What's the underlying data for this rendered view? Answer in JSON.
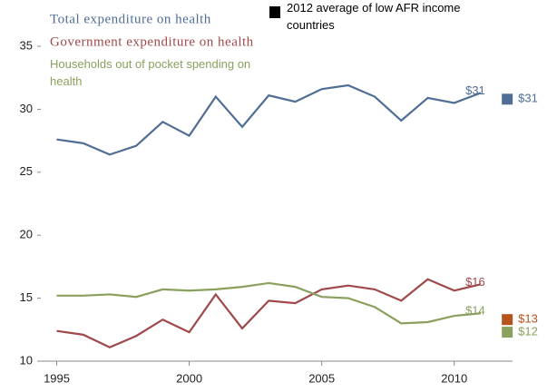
{
  "chart_data": {
    "type": "line",
    "x": [
      1995,
      1996,
      1997,
      1998,
      1999,
      2000,
      2001,
      2002,
      2003,
      2004,
      2005,
      2006,
      2007,
      2008,
      2009,
      2010,
      2011
    ],
    "xlim": [
      1994.4,
      2012.2
    ],
    "xticks": [
      1995,
      2000,
      2005,
      2010
    ],
    "ylim": [
      10,
      35
    ],
    "yticks": [
      10,
      15,
      20,
      25,
      30,
      35
    ],
    "series": [
      {
        "name": "Total expenditure on health",
        "color": "#4f6d95",
        "values": [
          27.6,
          27.3,
          26.4,
          27.1,
          29.0,
          27.9,
          31.0,
          28.6,
          31.1,
          30.6,
          31.6,
          31.9,
          31.0,
          29.1,
          30.9,
          30.5,
          31.3
        ],
        "end_label": {
          "value": 31.3,
          "label": "$31"
        }
      },
      {
        "name": "Government expenditure on health",
        "color": "#a0484a",
        "values": [
          12.4,
          12.1,
          11.1,
          12.0,
          13.3,
          12.3,
          15.3,
          12.6,
          14.8,
          14.6,
          15.7,
          16.0,
          15.7,
          14.8,
          16.5,
          15.6,
          16.1
        ],
        "end_label": {
          "value": 16.1,
          "label": "$16"
        }
      },
      {
        "name": "Households out of pocket spending on health",
        "color": "#8aa05e",
        "values": [
          15.2,
          15.2,
          15.3,
          15.1,
          15.7,
          15.6,
          15.7,
          15.9,
          16.2,
          15.9,
          15.1,
          15.0,
          14.3,
          13.0,
          13.1,
          13.6,
          13.8
        ],
        "end_label": {
          "value": 13.8,
          "label": "$14"
        }
      }
    ],
    "averages": {
      "name": "2012 average of low AFR income countries",
      "x": 2012,
      "values": [
        30.8,
        13.3,
        12.3
      ],
      "value_labels": [
        "$31",
        "$13",
        "$12"
      ],
      "colors": [
        "#4f6d95",
        "#b5521e",
        "#8aa05e"
      ]
    }
  }
}
